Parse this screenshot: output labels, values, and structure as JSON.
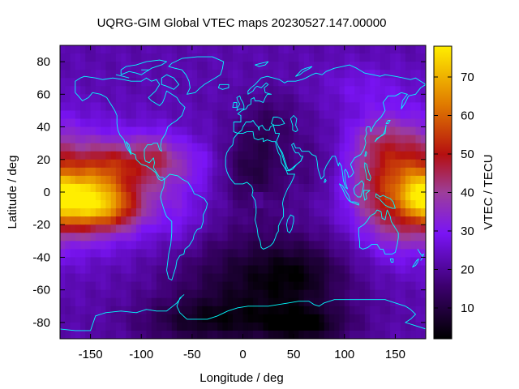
{
  "chart_data": {
    "type": "heatmap",
    "title": "UQRG-GIM Global VTEC maps 20230527.147.00000",
    "xlabel": "Longitude / deg",
    "ylabel": "Latitude / deg",
    "colorbar_label": "VTEC / TECU",
    "xlim": [
      -180,
      180
    ],
    "ylim": [
      -90,
      90
    ],
    "xticks": [
      -150,
      -100,
      -50,
      0,
      50,
      100,
      150
    ],
    "yticks": [
      -80,
      -60,
      -40,
      -20,
      0,
      20,
      40,
      60,
      80
    ],
    "colorbar_range": [
      2,
      78
    ],
    "colorbar_ticks": [
      10,
      20,
      30,
      40,
      50,
      60,
      70
    ],
    "colormap": "black-purple-red-yellow",
    "grid": false,
    "legend": "colorbar-right",
    "coastline_color": "#00ffff",
    "grid_resolution_deg": [
      5,
      5
    ],
    "background_vtec": 22,
    "features": [
      {
        "lon": -150,
        "lat": 3,
        "amp": 24,
        "sx": 58,
        "sy": 22
      },
      {
        "lon": -158,
        "lat": -6,
        "amp": 32,
        "sx": 22,
        "sy": 11
      },
      {
        "lon": -125,
        "lat": -10,
        "amp": 14,
        "sx": 18,
        "sy": 9
      },
      {
        "lon": -125,
        "lat": 17,
        "amp": 12,
        "sx": 22,
        "sy": 9
      },
      {
        "lon": -85,
        "lat": 22,
        "amp": 12,
        "sx": 15,
        "sy": 10
      },
      {
        "lon": -50,
        "lat": 18,
        "amp": 6,
        "sx": 18,
        "sy": 10
      },
      {
        "lon": 150,
        "lat": 5,
        "amp": 22,
        "sx": 30,
        "sy": 28
      },
      {
        "lon": 175,
        "lat": -2,
        "amp": 14,
        "sx": 12,
        "sy": 8
      },
      {
        "lon": 130,
        "lat": 32,
        "amp": 6,
        "sx": 18,
        "sy": 9
      },
      {
        "lon": 115,
        "lat": 65,
        "amp": 5,
        "sx": 28,
        "sy": 10
      },
      {
        "lon": 20,
        "lat": -55,
        "amp": -16,
        "sx": 60,
        "sy": 22
      },
      {
        "lon": 55,
        "lat": -50,
        "amp": -6,
        "sx": 25,
        "sy": 12
      },
      {
        "lon": -40,
        "lat": -80,
        "amp": -12,
        "sx": 45,
        "sy": 10
      },
      {
        "lon": 60,
        "lat": -82,
        "amp": -15,
        "sx": 30,
        "sy": 8
      },
      {
        "lon": 10,
        "lat": 15,
        "amp": -12,
        "sx": 22,
        "sy": 18
      },
      {
        "lon": 30,
        "lat": 45,
        "amp": -6,
        "sx": 20,
        "sy": 12
      },
      {
        "lon": 70,
        "lat": 15,
        "amp": -5,
        "sx": 20,
        "sy": 15
      },
      {
        "lon": 15,
        "lat": -5,
        "amp": 8,
        "sx": 4,
        "sy": 3
      },
      {
        "lon": -60,
        "lat": -20,
        "amp": 4,
        "sx": 12,
        "sy": 12
      }
    ]
  }
}
